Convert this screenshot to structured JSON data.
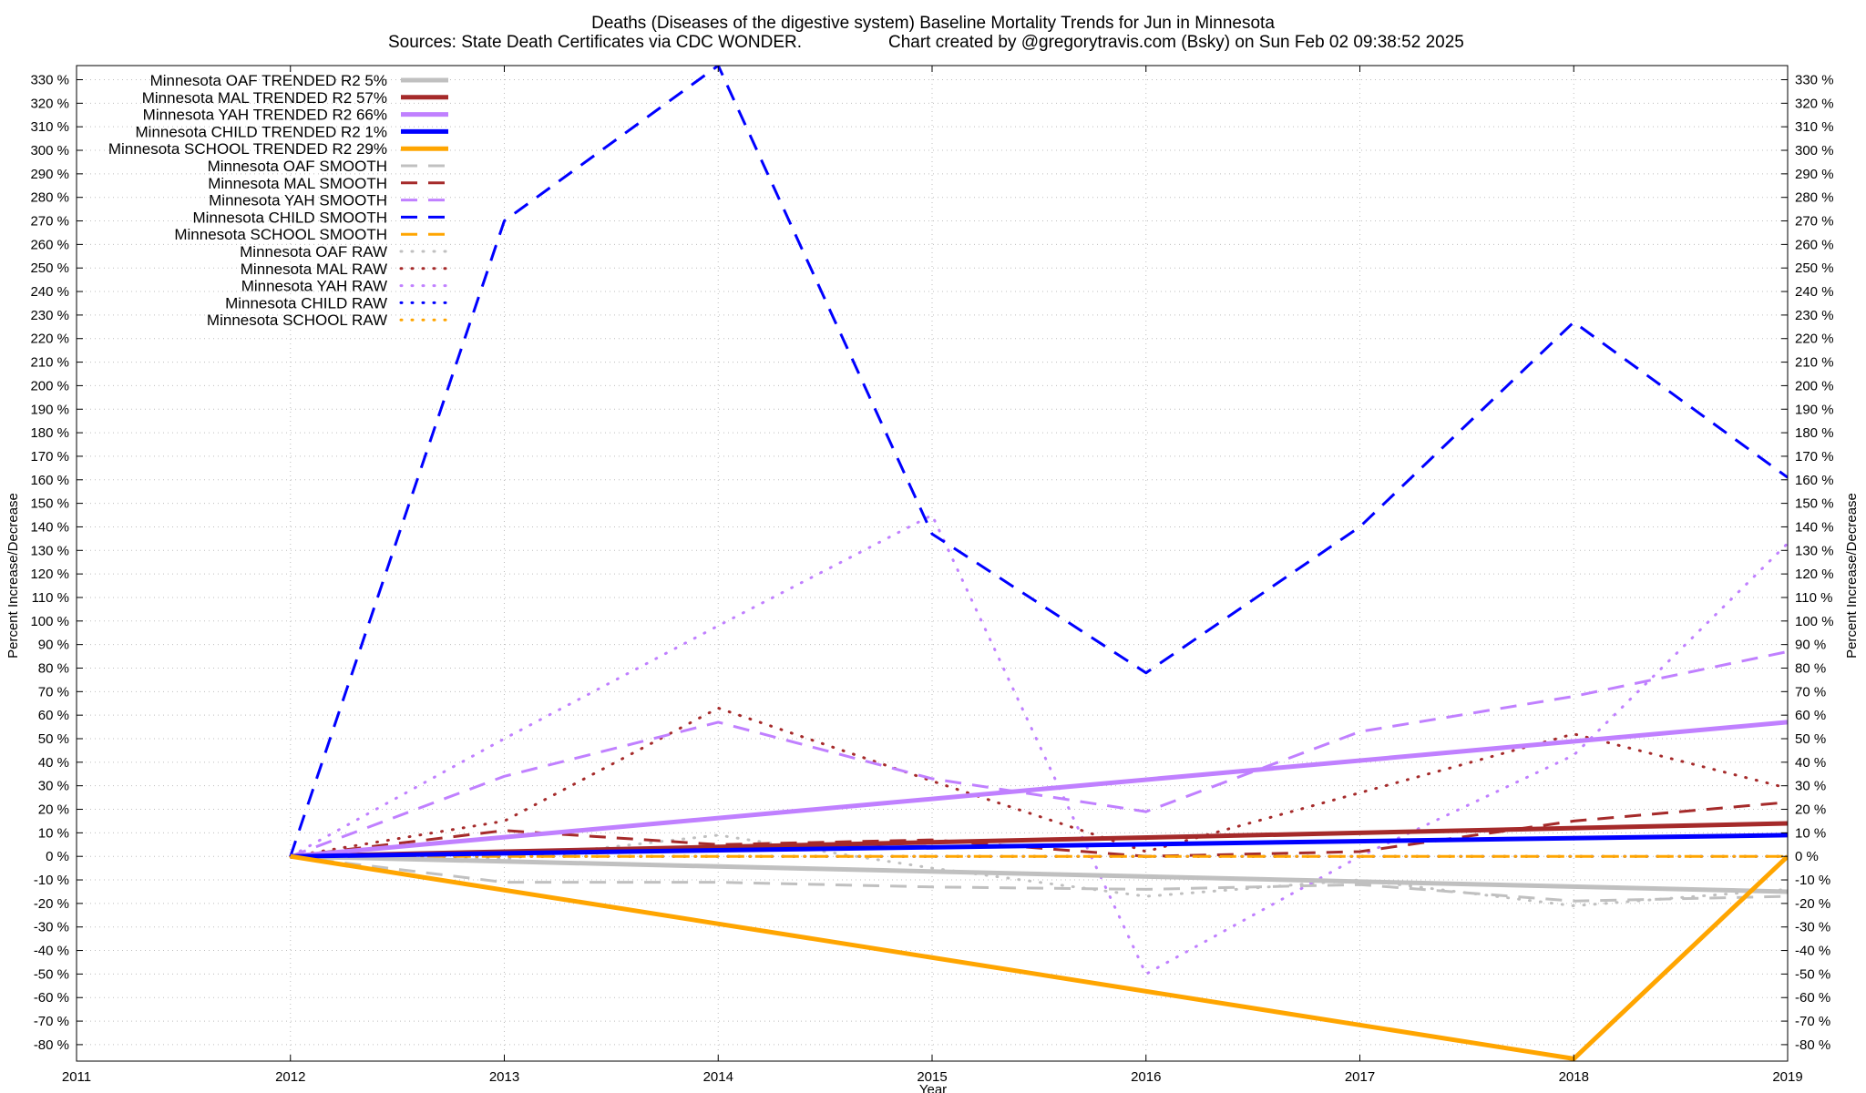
{
  "chart_data": {
    "type": "line",
    "title": "Deaths (Diseases of the digestive system)  Baseline Mortality Trends for Jun in Minnesota",
    "subtitle_left": "Sources: State Death Certificates via CDC WONDER.",
    "subtitle_right": "Chart created by @gregorytravis.com (Bsky) on Sun Feb 02 09:38:52 2025",
    "xlabel": "Year",
    "ylabel": "Percent Increase/Decrease",
    "ylabel_right": "Percent Increase/Decrease",
    "xlim": [
      2011,
      2019
    ],
    "ylim": [
      -87,
      336
    ],
    "x_ticks": [
      "2011",
      "2012",
      "2013",
      "2014",
      "2015",
      "2016",
      "2017",
      "2018",
      "2019"
    ],
    "y_ticks": [
      "-80 %",
      "-70 %",
      "-60 %",
      "-50 %",
      "-40 %",
      "-30 %",
      "-20 %",
      "-10 %",
      "0 %",
      "10 %",
      "20 %",
      "30 %",
      "40 %",
      "50 %",
      "60 %",
      "70 %",
      "80 %",
      "90 %",
      "100 %",
      "110 %",
      "120 %",
      "130 %",
      "140 %",
      "150 %",
      "160 %",
      "170 %",
      "180 %",
      "190 %",
      "200 %",
      "210 %",
      "220 %",
      "230 %",
      "240 %",
      "250 %",
      "260 %",
      "270 %",
      "280 %",
      "290 %",
      "300 %",
      "310 %",
      "320 %",
      "330 %"
    ],
    "grid": true,
    "legend_position": "top-left",
    "series": [
      {
        "name": "Minnesota OAF TRENDED R2   5%",
        "style": "solid",
        "color": "#c0c0c0",
        "x": [
          2012,
          2019
        ],
        "values": [
          0,
          -15
        ]
      },
      {
        "name": "Minnesota MAL TRENDED R2  57%",
        "style": "solid",
        "color": "#a52a2a",
        "x": [
          2012,
          2019
        ],
        "values": [
          0,
          14
        ]
      },
      {
        "name": "Minnesota YAH TRENDED R2  66%",
        "style": "solid",
        "color": "#c080ff",
        "x": [
          2012,
          2019
        ],
        "values": [
          0,
          57
        ]
      },
      {
        "name": "Minnesota CHILD TRENDED R2   1%",
        "style": "solid",
        "color": "#0000ff",
        "x": [
          2012,
          2019
        ],
        "values": [
          0,
          9
        ]
      },
      {
        "name": "Minnesota SCHOOL TRENDED R2  29%",
        "style": "solid",
        "color": "#ffa500",
        "x": [
          2012,
          2018,
          2019
        ],
        "values": [
          0,
          -86,
          0
        ]
      },
      {
        "name": "Minnesota OAF SMOOTH",
        "style": "dashed",
        "color": "#c0c0c0",
        "x": [
          2012,
          2013,
          2014,
          2015,
          2016,
          2017,
          2018,
          2019
        ],
        "values": [
          0,
          -11,
          -11,
          -13,
          -14,
          -12,
          -19,
          -17
        ]
      },
      {
        "name": "Minnesota MAL SMOOTH",
        "style": "dashed",
        "color": "#a52a2a",
        "x": [
          2012,
          2013,
          2014,
          2015,
          2016,
          2017,
          2018,
          2019
        ],
        "values": [
          0,
          11,
          5,
          7,
          0,
          2,
          15,
          23
        ]
      },
      {
        "name": "Minnesota YAH SMOOTH",
        "style": "dashed",
        "color": "#c080ff",
        "x": [
          2012,
          2013,
          2014,
          2015,
          2016,
          2017,
          2018,
          2019
        ],
        "values": [
          0,
          34,
          57,
          33,
          19,
          53,
          68,
          87
        ]
      },
      {
        "name": "Minnesota CHILD SMOOTH",
        "style": "dashed",
        "color": "#0000ff",
        "x": [
          2012,
          2013,
          2014,
          2015,
          2016,
          2017,
          2018,
          2019
        ],
        "values": [
          0,
          270,
          336,
          137,
          78,
          140,
          227,
          161
        ]
      },
      {
        "name": "Minnesota SCHOOL SMOOTH",
        "style": "dashed",
        "color": "#ffa500",
        "x": [
          2012,
          2019
        ],
        "values": [
          0,
          0
        ]
      },
      {
        "name": "Minnesota OAF RAW",
        "style": "dotted",
        "color": "#c0c0c0",
        "x": [
          2012,
          2013,
          2014,
          2015,
          2016,
          2017,
          2018,
          2019
        ],
        "values": [
          0,
          -1,
          9,
          -5,
          -17,
          -10,
          -21,
          -14
        ]
      },
      {
        "name": "Minnesota MAL RAW",
        "style": "dotted",
        "color": "#a52a2a",
        "x": [
          2012,
          2013,
          2014,
          2015,
          2016,
          2017,
          2018,
          2019
        ],
        "values": [
          0,
          15,
          63,
          32,
          2,
          27,
          52,
          29
        ]
      },
      {
        "name": "Minnesota YAH RAW",
        "style": "dotted",
        "color": "#c080ff",
        "x": [
          2012,
          2013,
          2014,
          2015,
          2016,
          2017,
          2018,
          2019
        ],
        "values": [
          0,
          50,
          98,
          145,
          -50,
          0,
          43,
          133
        ]
      },
      {
        "name": "Minnesota CHILD RAW",
        "style": "dotted",
        "color": "#0000ff",
        "x": [
          2012,
          2019
        ],
        "values": [
          0,
          0
        ]
      },
      {
        "name": "Minnesota SCHOOL RAW",
        "style": "dotted",
        "color": "#ffa500",
        "x": [
          2012,
          2019
        ],
        "values": [
          0,
          0
        ]
      }
    ]
  }
}
